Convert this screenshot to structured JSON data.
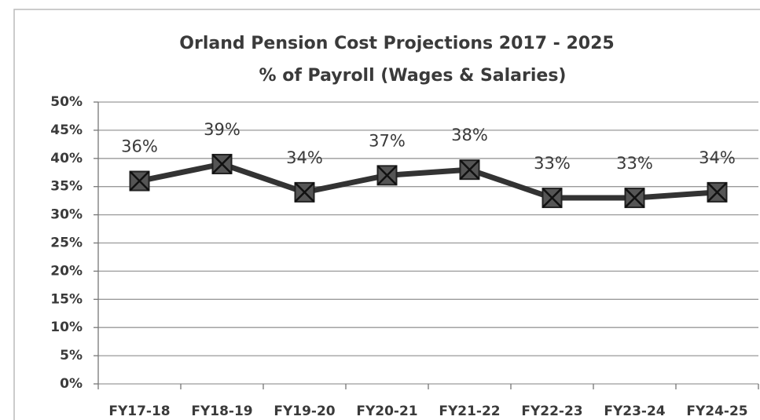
{
  "chart_data": {
    "type": "line",
    "title": "Orland Pension Cost Projections 2017 - 2025",
    "subtitle": "% of Payroll (Wages & Salaries)",
    "categories": [
      "FY17-18",
      "FY18-19",
      "FY19-20",
      "FY20-21",
      "FY21-22",
      "FY22-23",
      "FY23-24",
      "FY24-25"
    ],
    "values": [
      36,
      39,
      34,
      37,
      38,
      33,
      33,
      34
    ],
    "value_labels": [
      "36%",
      "39%",
      "34%",
      "37%",
      "38%",
      "33%",
      "33%",
      "34%"
    ],
    "color": "#333333",
    "ylim": [
      0,
      50
    ],
    "yticks": [
      {
        "value": 0,
        "label": "0%"
      },
      {
        "value": 5,
        "label": "5%"
      },
      {
        "value": 10,
        "label": "10%"
      },
      {
        "value": 15,
        "label": "15%"
      },
      {
        "value": 20,
        "label": "20%"
      },
      {
        "value": 25,
        "label": "25%"
      },
      {
        "value": 30,
        "label": "30%"
      },
      {
        "value": 35,
        "label": "35%"
      },
      {
        "value": 40,
        "label": "40%"
      },
      {
        "value": 45,
        "label": "45%"
      },
      {
        "value": 50,
        "label": "50%"
      }
    ],
    "grid": true
  }
}
